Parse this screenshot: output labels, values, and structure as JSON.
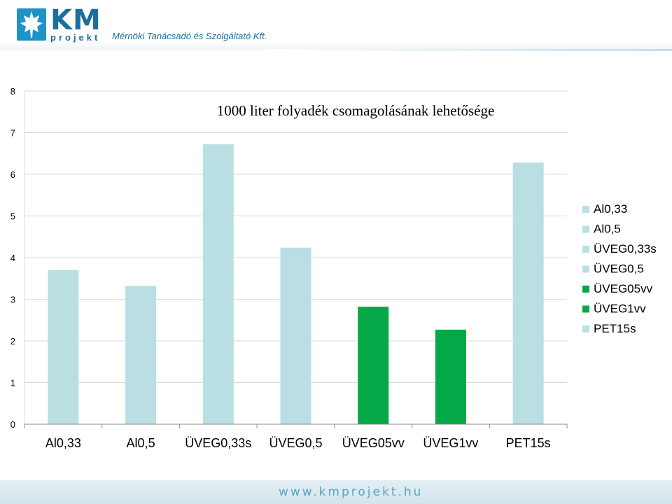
{
  "header": {
    "logo_km": "KM",
    "logo_projekt": "projekt",
    "tagline": "Mérnöki Tanácsadó és Szolgáltató Kft."
  },
  "footer": {
    "url": "www.kmprojekt.hu"
  },
  "colors": {
    "light": "#b9dfe2",
    "green": "#05a846",
    "grid": "#d9d9d9"
  },
  "chart_data": {
    "type": "bar",
    "title": "1000 liter folyadék csomagolásának lehetősége",
    "categories": [
      "Al0,33",
      "Al0,5",
      "ÜVEG0,33s",
      "ÜVEG0,5",
      "ÜVEG05vv",
      "ÜVEG1vv",
      "PET15s"
    ],
    "values": [
      3.7,
      3.32,
      6.72,
      4.24,
      2.82,
      2.27,
      6.28
    ],
    "bar_colors": [
      "#b9dfe2",
      "#b9dfe2",
      "#b9dfe2",
      "#b9dfe2",
      "#05a846",
      "#05a846",
      "#b9dfe2"
    ],
    "ylim": [
      0,
      8
    ],
    "yticks": [
      "0",
      "1",
      "2",
      "3",
      "4",
      "5",
      "6",
      "7",
      "8"
    ],
    "grid": true,
    "legend_position": "right",
    "legend": [
      {
        "label": "Al0,33",
        "color": "#b9dfe2"
      },
      {
        "label": "Al0,5",
        "color": "#b9dfe2"
      },
      {
        "label": "ÜVEG0,33s",
        "color": "#b9dfe2"
      },
      {
        "label": "ÜVEG0,5",
        "color": "#b9dfe2"
      },
      {
        "label": "ÜVEG05vv",
        "color": "#05a846"
      },
      {
        "label": "ÜVEG1vv",
        "color": "#05a846"
      },
      {
        "label": "PET15s",
        "color": "#b9dfe2"
      }
    ]
  }
}
